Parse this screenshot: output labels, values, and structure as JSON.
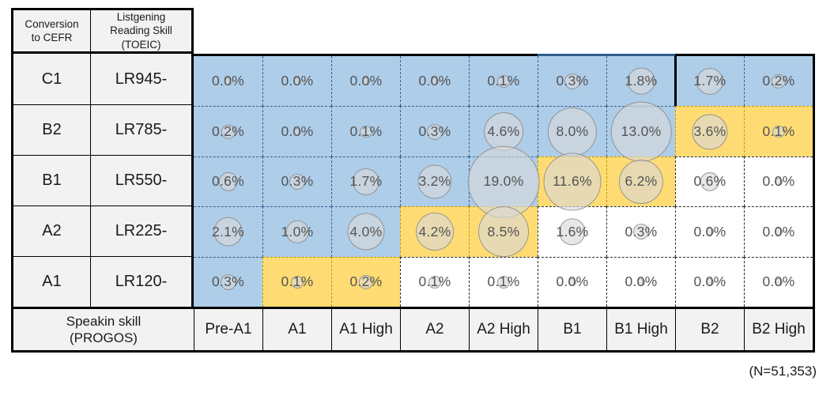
{
  "corner": {
    "row_axis": "Conversion\nto CEFR",
    "col_axis": "Listgening\nReading Skill\n(TOEIC)"
  },
  "rows": [
    {
      "cefr": "C1",
      "toeic": "LR945-",
      "values": [
        0.0,
        0.0,
        0.0,
        0.0,
        0.1,
        0.3,
        1.8,
        1.7,
        0.2
      ],
      "labels": [
        "0.0%",
        "0.0%",
        "0.0%",
        "0.0%",
        "0.1%",
        "0.3%",
        "1.8%",
        "1.7%",
        "0.2%"
      ],
      "fills": [
        "blue",
        "blue",
        "blue",
        "blue",
        "blue",
        "blue",
        "blue",
        "blue",
        "blue"
      ]
    },
    {
      "cefr": "B2",
      "toeic": "LR785-",
      "values": [
        0.2,
        0.0,
        0.1,
        0.3,
        4.6,
        8.0,
        13.0,
        3.6,
        0.1
      ],
      "labels": [
        "0.2%",
        "0.0%",
        "0.1%",
        "0.3%",
        "4.6%",
        "8.0%",
        "13.0%",
        "3.6%",
        "0.1%"
      ],
      "fills": [
        "blue",
        "blue",
        "blue",
        "blue",
        "blue",
        "blue",
        "blue",
        "yellow",
        "yellow"
      ]
    },
    {
      "cefr": "B1",
      "toeic": "LR550-",
      "values": [
        0.6,
        0.3,
        1.7,
        3.2,
        19.0,
        11.6,
        6.2,
        0.6,
        0.0
      ],
      "labels": [
        "0.6%",
        "0.3%",
        "1.7%",
        "3.2%",
        "19.0%",
        "11.6%",
        "6.2%",
        "0.6%",
        "0.0%"
      ],
      "fills": [
        "blue",
        "blue",
        "blue",
        "blue",
        "blue",
        "yellow",
        "yellow",
        "white",
        "white"
      ]
    },
    {
      "cefr": "A2",
      "toeic": "LR225-",
      "values": [
        2.1,
        1.0,
        4.0,
        4.2,
        8.5,
        1.6,
        0.3,
        0.0,
        0.0
      ],
      "labels": [
        "2.1%",
        "1.0%",
        "4.0%",
        "4.2%",
        "8.5%",
        "1.6%",
        "0.3%",
        "0.0%",
        "0.0%"
      ],
      "fills": [
        "blue",
        "blue",
        "blue",
        "yellow",
        "yellow",
        "white",
        "white",
        "white",
        "white"
      ]
    },
    {
      "cefr": "A1",
      "toeic": "LR120-",
      "values": [
        0.3,
        0.1,
        0.2,
        0.1,
        0.1,
        0.0,
        0.0,
        0.0,
        0.0
      ],
      "labels": [
        "0.3%",
        "0.1%",
        "0.2%",
        "0.1%",
        "0.1%",
        "0.0%",
        "0.0%",
        "0.0%",
        "0.0%"
      ],
      "fills": [
        "blue",
        "yellow",
        "yellow",
        "white",
        "white",
        "white",
        "white",
        "white",
        "white"
      ]
    }
  ],
  "footer": {
    "axis": "Speakin skill\n(PROGOS)",
    "levels": [
      "Pre-A1",
      "A1",
      "A1 High",
      "A2",
      "A2 High",
      "B1",
      "B1 High",
      "B2",
      "B2 High"
    ]
  },
  "note": "(N=51,353)",
  "colors": {
    "cell_blue": "#AECDE9",
    "cell_yellow": "#FFDC73",
    "blue_border": "#33608F",
    "yellow_border": "#C39500",
    "white_cell_border": "#2B2B2B",
    "header_bg": "#F2F2F2",
    "table_border": "#000000",
    "accent_top_border": "#2F5D8E",
    "bubble_fill": "rgba(217,217,217,0.62)",
    "bubble_stroke": "rgba(125,125,125,0.75)",
    "value_text": "#545454"
  },
  "chart_data": {
    "type": "heatmap",
    "title": "Conversion to CEFR: Listgening Reading Skill (TOEIC) vs Speakin skill (PROGOS)",
    "x_axis_label": "Speakin skill (PROGOS)",
    "x_categories": [
      "Pre-A1",
      "A1",
      "A1 High",
      "A2",
      "A2 High",
      "B1",
      "B1 High",
      "B2",
      "B2 High"
    ],
    "y_axis_label": "Conversion to CEFR / Listgening Reading Skill (TOEIC)",
    "y_categories": [
      "C1 (LR945-)",
      "B2 (LR785-)",
      "B1 (LR550-)",
      "A2 (LR225-)",
      "A1 (LR120-)"
    ],
    "values_percent": [
      [
        0.0,
        0.0,
        0.0,
        0.0,
        0.1,
        0.3,
        1.8,
        1.7,
        0.2
      ],
      [
        0.2,
        0.0,
        0.1,
        0.3,
        4.6,
        8.0,
        13.0,
        3.6,
        0.1
      ],
      [
        0.6,
        0.3,
        1.7,
        3.2,
        19.0,
        11.6,
        6.2,
        0.6,
        0.0
      ],
      [
        2.1,
        1.0,
        4.0,
        4.2,
        8.5,
        1.6,
        0.3,
        0.0,
        0.0
      ],
      [
        0.3,
        0.1,
        0.2,
        0.1,
        0.1,
        0.0,
        0.0,
        0.0,
        0.0
      ]
    ],
    "cell_highlight": [
      [
        "blue",
        "blue",
        "blue",
        "blue",
        "blue",
        "blue",
        "blue",
        "blue",
        "blue"
      ],
      [
        "blue",
        "blue",
        "blue",
        "blue",
        "blue",
        "blue",
        "blue",
        "yellow",
        "yellow"
      ],
      [
        "blue",
        "blue",
        "blue",
        "blue",
        "blue",
        "yellow",
        "yellow",
        "white",
        "white"
      ],
      [
        "blue",
        "blue",
        "blue",
        "yellow",
        "yellow",
        "white",
        "white",
        "white",
        "white"
      ],
      [
        "blue",
        "yellow",
        "yellow",
        "white",
        "white",
        "white",
        "white",
        "white",
        "white"
      ]
    ],
    "bubble_overlay": "gray circle per cell, area proportional to percent value",
    "sample_size_note": "(N=51,353)",
    "legend_position": "none",
    "grid": "dashed cell borders"
  }
}
